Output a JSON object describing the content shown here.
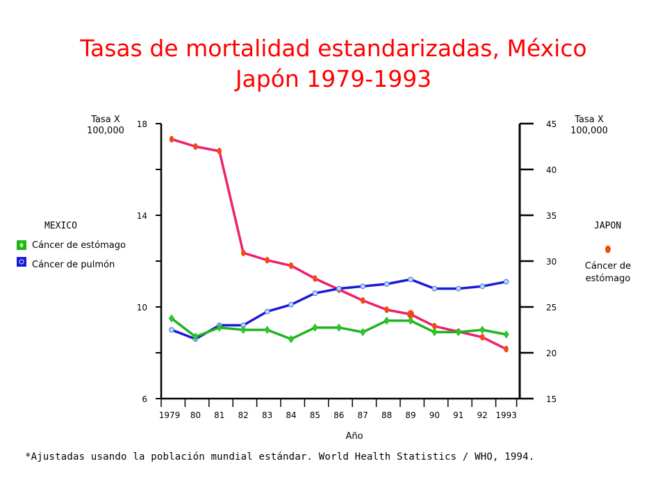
{
  "title_line1": "Tasas de mortalidad estandarizadas, México",
  "title_line2": "Japón 1979-1993",
  "footnote": "*Ajustadas usando la población mundial estándar. World Health Statistics / WHO, 1994.",
  "legend": {
    "mexico_heading": "MEXICO",
    "mexico_items": [
      "Cáncer de estómago",
      "Cáncer de pulmón"
    ],
    "japan_heading": "JAPON",
    "japan_item_line1": "Cáncer de",
    "japan_item_line2": "estómago"
  },
  "colors": {
    "title": "#ff0000",
    "mexico_stomach": "#1fb31f",
    "mexico_lung": "#1a1ad6",
    "japan_stomach": "#f01e6e",
    "japan_marker": "#f04a10",
    "mexico_lung_marker_fill": "#b4d7ff"
  },
  "chart_data": {
    "type": "line",
    "xlabel": "Año",
    "categories": [
      "1979",
      "80",
      "81",
      "82",
      "83",
      "84",
      "85",
      "86",
      "87",
      "88",
      "89",
      "90",
      "91",
      "92",
      "1993"
    ],
    "y_left": {
      "label_line1": "Tasa X",
      "label_line2": "100,000",
      "range": [
        6,
        18
      ],
      "ticks": [
        6,
        10,
        14,
        18
      ]
    },
    "y_right": {
      "label_line1": "Tasa X",
      "label_line2": "100,000",
      "range": [
        15,
        45
      ],
      "ticks": [
        15,
        20,
        25,
        30,
        35,
        40,
        45
      ]
    },
    "grid": false,
    "series": [
      {
        "name": "Cáncer de estómago",
        "group": "MEXICO",
        "axis": "left",
        "values": [
          9.5,
          8.7,
          9.1,
          9.0,
          9.0,
          8.6,
          9.1,
          9.1,
          8.9,
          9.4,
          9.4,
          8.9,
          8.9,
          9.0,
          8.8
        ]
      },
      {
        "name": "Cáncer de pulmón",
        "group": "MEXICO",
        "axis": "left",
        "values": [
          9.0,
          8.6,
          9.2,
          9.2,
          9.8,
          10.1,
          10.6,
          10.8,
          10.9,
          11.0,
          11.2,
          10.8,
          10.8,
          10.9,
          11.1
        ]
      },
      {
        "name": "Cáncer de estómago",
        "group": "JAPON",
        "axis": "right",
        "values": [
          43.3,
          42.5,
          42.0,
          30.9,
          30.1,
          29.5,
          28.1,
          26.9,
          25.7,
          24.7,
          24.2,
          22.9,
          22.3,
          21.7,
          20.4
        ]
      }
    ]
  }
}
